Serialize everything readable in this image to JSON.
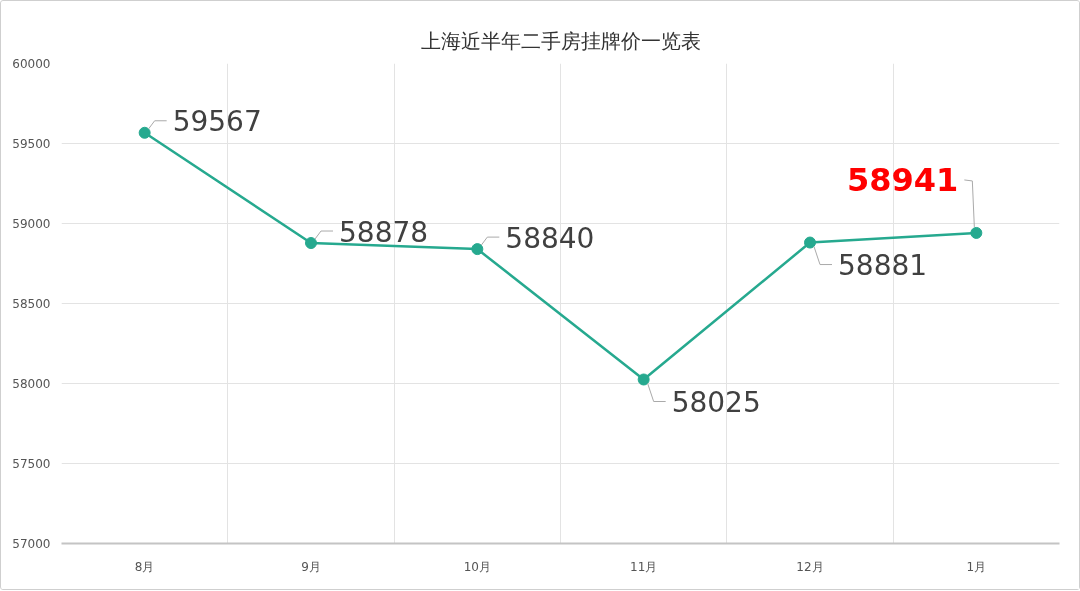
{
  "chart_data": {
    "type": "line",
    "title": "上海近半年二手房挂牌价一览表",
    "categories": [
      "8月",
      "9月",
      "10月",
      "11月",
      "12月",
      "1月"
    ],
    "series": [
      {
        "color": "#26a98f",
        "values": [
          59567,
          58878,
          58840,
          58025,
          58881,
          58941
        ],
        "value_labels": [
          "59567",
          "58878",
          "58840",
          "58025",
          "58881",
          null
        ]
      }
    ],
    "ylim": [
      57000,
      60000
    ],
    "yticks": [
      57000,
      57500,
      58000,
      58500,
      59000,
      59500,
      60000
    ],
    "grid": true,
    "marker": "circle",
    "line_style": "solid",
    "annotations": [
      {
        "text": "58941",
        "x": "1月",
        "y": 58941
      }
    ]
  }
}
